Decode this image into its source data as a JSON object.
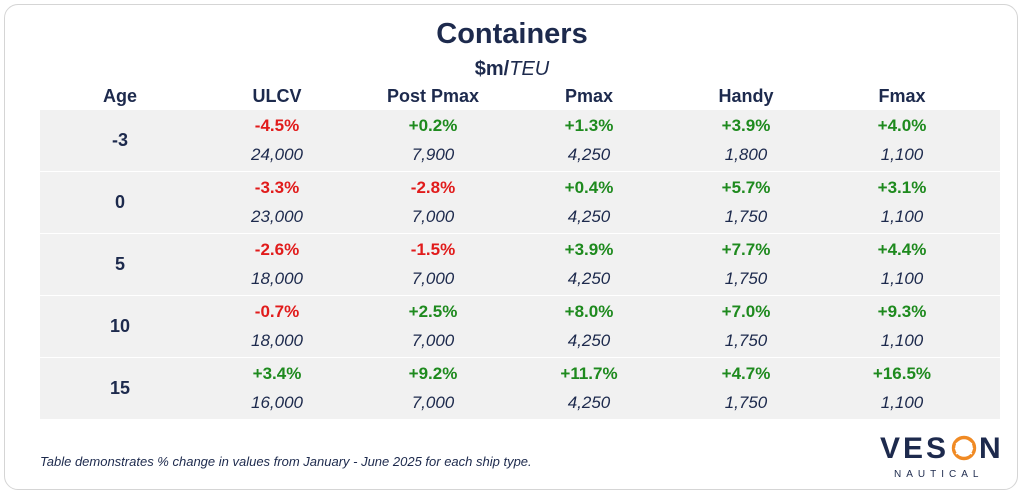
{
  "chart_data": {
    "type": "table",
    "title": "Containers",
    "subtitle_unit": "$m/",
    "subtitle_unit_italic": "TEU",
    "columns": [
      "Age",
      "ULCV",
      "Post Pmax",
      "Pmax",
      "Handy",
      "Fmax"
    ],
    "rows": [
      {
        "age": "-3",
        "pct": [
          "-4.5%",
          "+0.2%",
          "+1.3%",
          "+3.9%",
          "+4.0%"
        ],
        "values": [
          "24,000",
          "7,900",
          "4,250",
          "1,800",
          "1,100"
        ]
      },
      {
        "age": "0",
        "pct": [
          "-3.3%",
          "-2.8%",
          "+0.4%",
          "+5.7%",
          "+3.1%"
        ],
        "values": [
          "23,000",
          "7,000",
          "4,250",
          "1,750",
          "1,100"
        ]
      },
      {
        "age": "5",
        "pct": [
          "-2.6%",
          "-1.5%",
          "+3.9%",
          "+7.7%",
          "+4.4%"
        ],
        "values": [
          "18,000",
          "7,000",
          "4,250",
          "1,750",
          "1,100"
        ]
      },
      {
        "age": "10",
        "pct": [
          "-0.7%",
          "+2.5%",
          "+8.0%",
          "+7.0%",
          "+9.3%"
        ],
        "values": [
          "18,000",
          "7,000",
          "4,250",
          "1,750",
          "1,100"
        ]
      },
      {
        "age": "15",
        "pct": [
          "+3.4%",
          "+9.2%",
          "+11.7%",
          "+4.7%",
          "+16.5%"
        ],
        "values": [
          "16,000",
          "7,000",
          "4,250",
          "1,750",
          "1,100"
        ]
      }
    ],
    "colors": {
      "negative": "#e11b1b",
      "positive": "#1e8a1e",
      "text": "#1d2a4d",
      "band": "#f1f1f1",
      "logo_accent": "#f08a24"
    }
  },
  "footnote": "Table demonstrates % change in values from January - June 2025 for each ship type.",
  "logo": {
    "word_left": "VES",
    "word_right": "N",
    "subtext": "NAUTICAL",
    "icon": "orange-ring-o-icon"
  }
}
